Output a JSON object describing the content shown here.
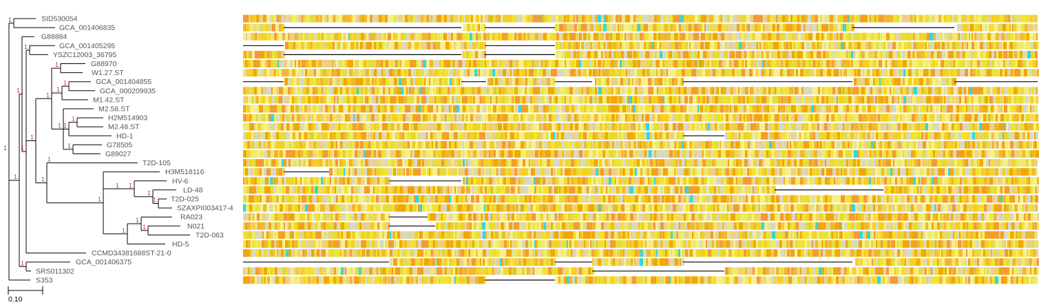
{
  "tree": {
    "leaves": [
      "SID530054",
      "GCA_001406835",
      "G88884",
      "GCA_001405295",
      "YSZC12003_36795",
      "G88970",
      "W1.27.ST",
      "GCA_001404855",
      "GCA_000209935",
      "M1.42.ST",
      "M2.58.ST",
      "H2M514903",
      "M2.48.ST",
      "HD-1",
      "G78505",
      "G89027",
      "T2D-105",
      "H3M518116",
      "HV-6",
      "LD-48",
      "T2D-025",
      "SZAXPI003417-4",
      "RA023",
      "N021",
      "T2D-063",
      "HD-5",
      "CCMD34381688ST-21-0",
      "GCA_001406375",
      "SRS011302",
      "S353"
    ],
    "support_label": "1",
    "scale_bar_label": "0.10"
  },
  "alignment": {
    "rows": 30,
    "palette": [
      "#f2e330",
      "#f5d020",
      "#eeea6e",
      "#f0b830",
      "#f2a800",
      "#f59a35",
      "#eccf8a",
      "#d9d9c0",
      "#f7ee90",
      "#e6dc3a"
    ],
    "cyan": "#33d6e0",
    "gap_color": "#000000"
  }
}
